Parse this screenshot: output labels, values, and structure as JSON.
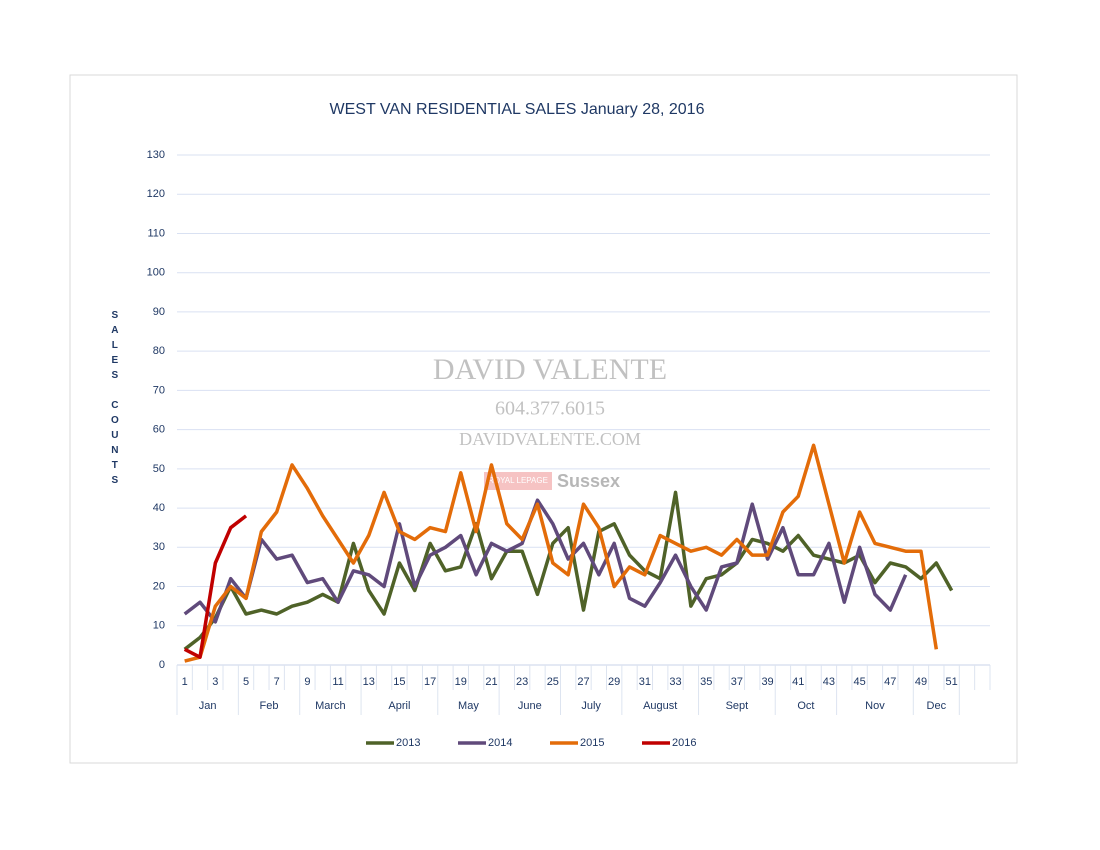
{
  "chart_data": {
    "type": "line",
    "title": "WEST VAN RESIDENTIAL SALES January 28, 2016",
    "y_label": "SALES COUNTS",
    "categories": [
      1,
      null,
      3,
      null,
      5,
      null,
      7,
      null,
      9,
      null,
      11,
      null,
      13,
      null,
      15,
      null,
      17,
      null,
      19,
      null,
      21,
      null,
      23,
      null,
      25,
      null,
      27,
      null,
      29,
      null,
      31,
      null,
      33,
      null,
      35,
      null,
      37,
      null,
      39,
      null,
      41,
      null,
      43,
      null,
      45,
      null,
      47,
      null,
      49,
      null,
      51,
      null,
      null
    ],
    "months": [
      {
        "label": "Jan",
        "span": 4
      },
      {
        "label": "Feb",
        "span": 4
      },
      {
        "label": "March",
        "span": 4
      },
      {
        "label": "April",
        "span": 5
      },
      {
        "label": "May",
        "span": 4
      },
      {
        "label": "June",
        "span": 4
      },
      {
        "label": "July",
        "span": 4
      },
      {
        "label": "August",
        "span": 5
      },
      {
        "label": "Sept",
        "span": 5
      },
      {
        "label": "Oct",
        "span": 4
      },
      {
        "label": "Nov",
        "span": 5
      },
      {
        "label": "Dec",
        "span": 3
      }
    ],
    "ylim": [
      0,
      130
    ],
    "yticks": [
      0,
      10,
      20,
      30,
      40,
      50,
      60,
      70,
      80,
      90,
      100,
      110,
      120,
      130
    ],
    "grid": true,
    "legend": "bottom",
    "series": [
      {
        "name": "2013",
        "color": "#4f6228",
        "values": [
          4,
          7,
          12,
          20,
          13,
          14,
          13,
          15,
          16,
          18,
          16,
          31,
          19,
          13,
          26,
          19,
          31,
          24,
          25,
          36,
          22,
          29,
          29,
          18,
          31,
          35,
          14,
          34,
          36,
          28,
          24,
          22,
          44,
          15,
          22,
          23,
          26,
          32,
          31,
          29,
          33,
          28,
          27,
          26,
          28,
          21,
          26,
          25,
          22,
          26,
          19,
          null,
          null
        ]
      },
      {
        "name": "2014",
        "color": "#604a7b",
        "values": [
          13,
          16,
          11,
          22,
          17,
          32,
          27,
          28,
          21,
          22,
          16,
          24,
          23,
          20,
          36,
          20,
          28,
          30,
          33,
          23,
          31,
          29,
          31,
          42,
          36,
          27,
          31,
          23,
          31,
          17,
          15,
          21,
          28,
          20,
          14,
          25,
          26,
          41,
          27,
          35,
          23,
          23,
          31,
          16,
          30,
          18,
          14,
          23,
          null,
          null,
          null,
          null,
          null
        ]
      },
      {
        "name": "2015",
        "color": "#e36c09",
        "values": [
          1,
          2,
          15,
          20,
          17,
          34,
          39,
          51,
          45,
          38,
          32,
          26,
          33,
          44,
          34,
          32,
          35,
          34,
          49,
          34,
          51,
          36,
          32,
          41,
          26,
          23,
          41,
          35,
          20,
          25,
          23,
          33,
          31,
          29,
          30,
          28,
          32,
          28,
          28,
          39,
          43,
          56,
          41,
          26,
          39,
          31,
          30,
          29,
          29,
          4,
          null,
          null,
          null
        ]
      },
      {
        "name": "2016",
        "color": "#c00000",
        "values": [
          4,
          2,
          26,
          35,
          38,
          null,
          null,
          null,
          null,
          null,
          null,
          null,
          null,
          null,
          null,
          null,
          null,
          null,
          null,
          null,
          null,
          null,
          null,
          null,
          null,
          null,
          null,
          null,
          null,
          null,
          null,
          null,
          null,
          null,
          null,
          null,
          null,
          null,
          null,
          null,
          null,
          null,
          null,
          null,
          null,
          null,
          null,
          null,
          null,
          null,
          null,
          null,
          null
        ]
      }
    ]
  },
  "watermark": {
    "name": "DAVID VALENTE",
    "phone": "604.377.6015",
    "web": "DAVIDVALENTE.COM",
    "brand": "ROYAL LEPAGE",
    "office": "Sussex"
  }
}
